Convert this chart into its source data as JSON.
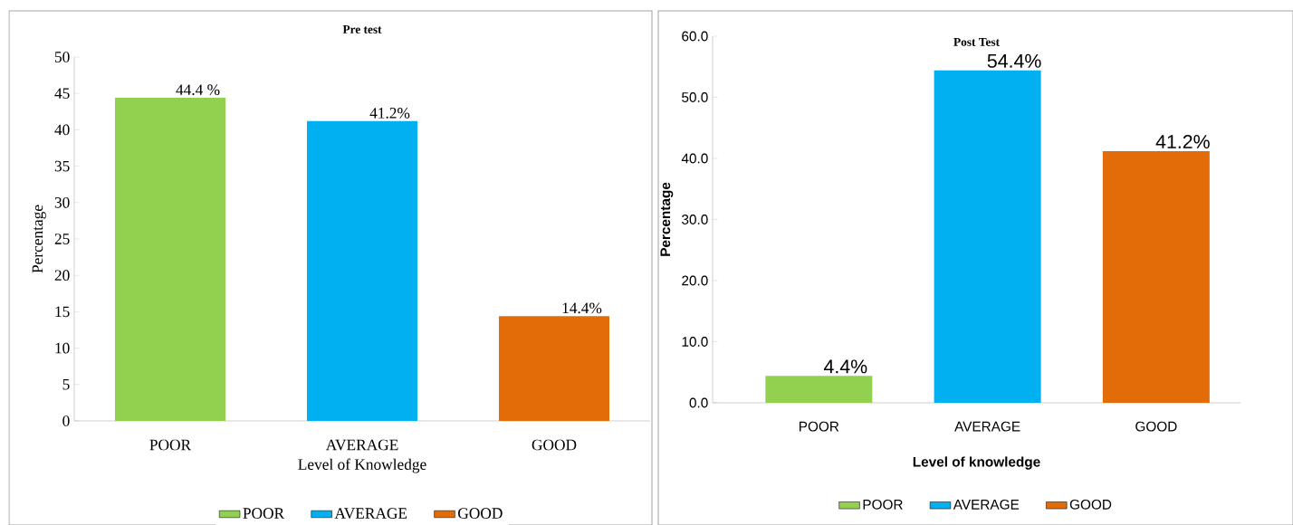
{
  "chart_data": [
    {
      "type": "bar",
      "title": "Pre test",
      "xlabel": "Level of Knowledge",
      "ylabel": "Percentage",
      "categories": [
        "POOR",
        "AVERAGE",
        "GOOD"
      ],
      "series": [
        {
          "name": "POOR",
          "color": "#92d050",
          "values": [
            44.4,
            null,
            null
          ],
          "value_labels": [
            "44.4 %",
            null,
            null
          ]
        },
        {
          "name": "AVERAGE",
          "color": "#00b0f0",
          "values": [
            null,
            41.2,
            null
          ],
          "value_labels": [
            null,
            "41.2%",
            null
          ]
        },
        {
          "name": "GOOD",
          "color": "#e36c09",
          "values": [
            null,
            null,
            14.4
          ],
          "value_labels": [
            null,
            null,
            "14.4%"
          ]
        }
      ],
      "ylim": [
        0,
        50
      ],
      "yticks": [
        0,
        5,
        10,
        15,
        20,
        25,
        30,
        35,
        40,
        45,
        50
      ],
      "legend": "bottom"
    },
    {
      "type": "bar",
      "title": "Post Test",
      "xlabel": "Level of knowledge",
      "ylabel": "Percentage",
      "categories": [
        "POOR",
        "AVERAGE",
        "GOOD"
      ],
      "series": [
        {
          "name": "POOR",
          "color": "#92d050",
          "values": [
            4.4,
            null,
            null
          ],
          "value_labels": [
            "4.4%",
            null,
            null
          ]
        },
        {
          "name": "AVERAGE",
          "color": "#00b0f0",
          "values": [
            null,
            54.4,
            null
          ],
          "value_labels": [
            null,
            "54.4%",
            null
          ]
        },
        {
          "name": "GOOD",
          "color": "#e36c09",
          "values": [
            null,
            null,
            41.2
          ],
          "value_labels": [
            null,
            null,
            "41.2%"
          ]
        }
      ],
      "ylim": [
        0,
        60
      ],
      "yticks": [
        {
          "value": 0,
          "label": "0.0"
        },
        {
          "value": 10,
          "label": "10.0"
        },
        {
          "value": 20,
          "label": "20.0"
        },
        {
          "value": 30,
          "label": "30.0"
        },
        {
          "value": 40,
          "label": "40.0"
        },
        {
          "value": 50,
          "label": "50.0"
        },
        {
          "value": 60,
          "label": "60.0"
        }
      ],
      "legend": "bottom"
    }
  ]
}
